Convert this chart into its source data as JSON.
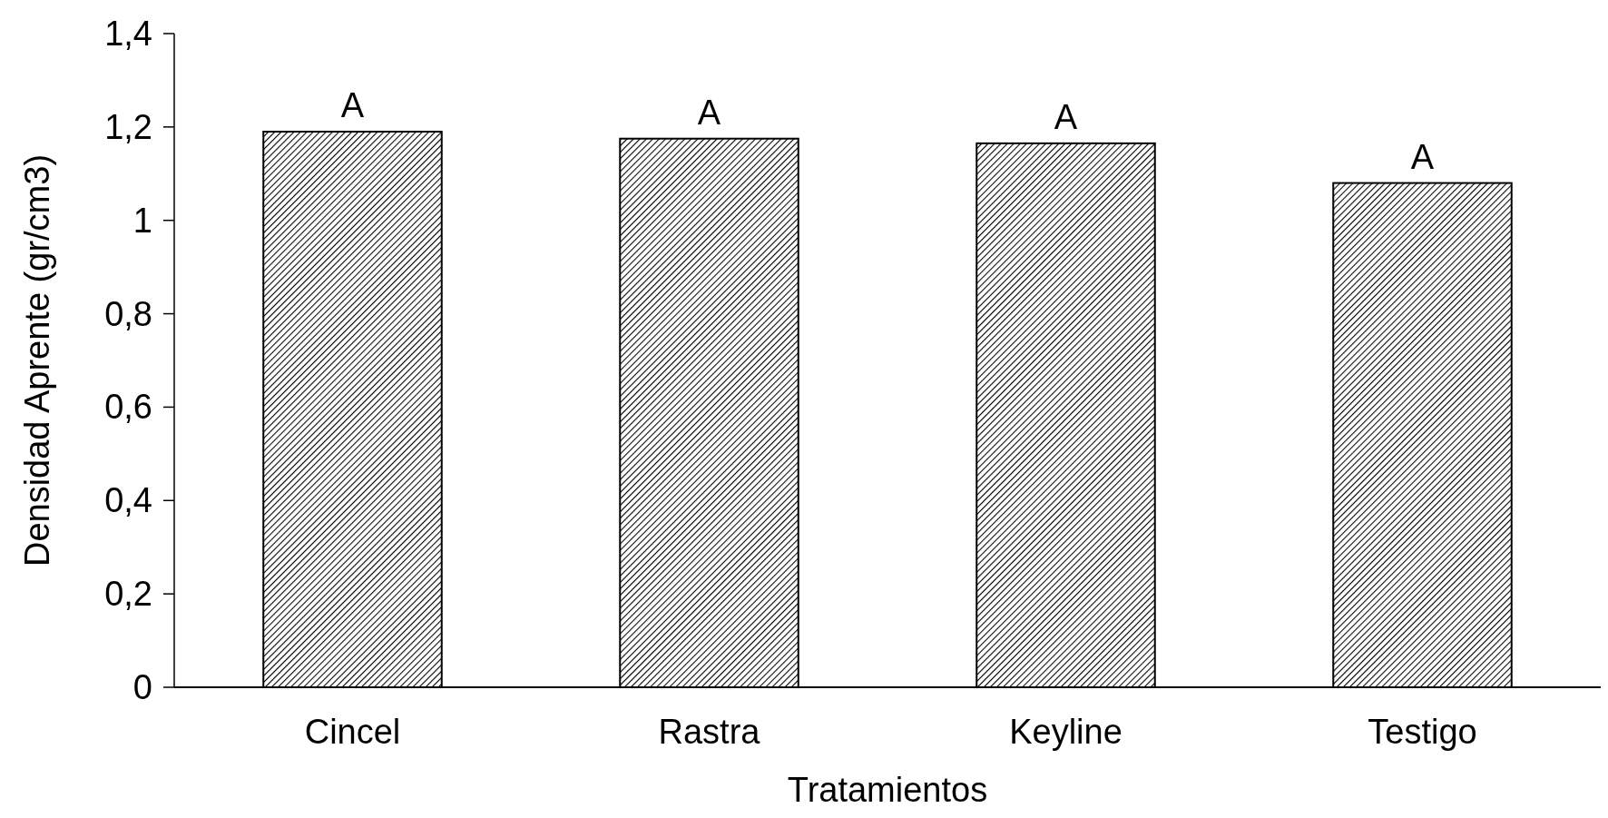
{
  "chart_data": {
    "type": "bar",
    "xlabel": "Tratamientos",
    "ylabel": "Densidad Aprente (gr/cm3)",
    "categories": [
      "Cincel",
      "Rastra",
      "Keyline",
      "Testigo"
    ],
    "values": [
      1.19,
      1.175,
      1.165,
      1.08
    ],
    "color": "#000000",
    "ylim": [
      0,
      1.4
    ],
    "yticks": [
      {
        "value": 0,
        "label": "0"
      },
      {
        "value": 0.2,
        "label": "0,2"
      },
      {
        "value": 0.4,
        "label": "0,4"
      },
      {
        "value": 0.6,
        "label": "0,6"
      },
      {
        "value": 0.8,
        "label": "0,8"
      },
      {
        "value": 1,
        "label": "1"
      },
      {
        "value": 1.2,
        "label": "1,2"
      },
      {
        "value": 1.4,
        "label": "1,4"
      }
    ],
    "annotations": [
      {
        "text": "A",
        "x": "Cincel",
        "y": 1.19
      },
      {
        "text": "A",
        "x": "Rastra",
        "y": 1.175
      },
      {
        "text": "A",
        "x": "Keyline",
        "y": 1.165
      },
      {
        "text": "A",
        "x": "Testigo",
        "y": 1.08
      }
    ],
    "grid": false
  }
}
